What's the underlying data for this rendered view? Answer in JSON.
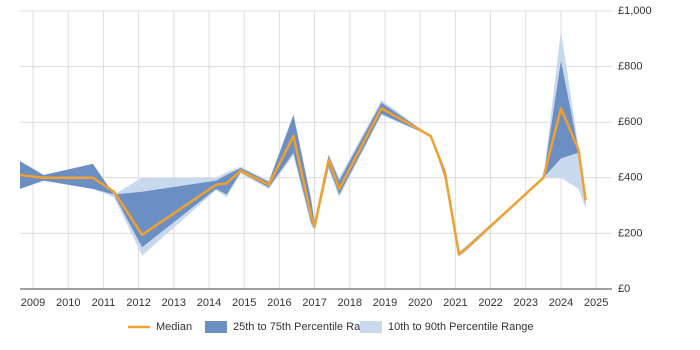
{
  "chart_data": {
    "type": "band-line",
    "x": [
      2008.63,
      2009.3,
      2010.7,
      2011.3,
      2012.1,
      2014.2,
      2014.5,
      2014.9,
      2015.7,
      2016.4,
      2016.9,
      2017.0,
      2017.4,
      2017.7,
      2018.9,
      2020.3,
      2020.7,
      2021.1,
      2021.3,
      2023.5,
      2024.0,
      2024.5,
      2024.7
    ],
    "series": [
      {
        "name": "Median",
        "color": "#f0a030",
        "values": [
          410,
          400,
          400,
          350,
          195,
          375,
          380,
          425,
          375,
          550,
          265,
          225,
          465,
          360,
          650,
          550,
          420,
          125,
          145,
          400,
          650,
          500,
          320
        ]
      },
      {
        "name": "25th to 75th Percentile Range",
        "color": "#6b8fc2",
        "low": [
          360,
          390,
          360,
          340,
          150,
          360,
          340,
          420,
          365,
          490,
          240,
          215,
          440,
          340,
          630,
          550,
          400,
          120,
          140,
          400,
          470,
          490,
          300
        ],
        "high": [
          460,
          410,
          450,
          340,
          350,
          390,
          410,
          435,
          385,
          625,
          320,
          240,
          480,
          390,
          670,
          550,
          430,
          130,
          150,
          400,
          820,
          500,
          335
        ]
      },
      {
        "name": "10th to 90th Percentile Range",
        "color": "#c8d9ee",
        "low": [
          360,
          390,
          360,
          330,
          120,
          355,
          330,
          415,
          360,
          480,
          230,
          210,
          430,
          330,
          625,
          550,
          395,
          115,
          135,
          400,
          400,
          360,
          290
        ],
        "high": [
          460,
          410,
          450,
          340,
          400,
          400,
          420,
          440,
          390,
          630,
          330,
          245,
          485,
          400,
          680,
          550,
          435,
          135,
          155,
          400,
          930,
          510,
          340
        ]
      }
    ],
    "xlim": [
      2008.63,
      2025.45
    ],
    "xticks": [
      2009,
      2010,
      2011,
      2012,
      2013,
      2014,
      2015,
      2016,
      2017,
      2018,
      2019,
      2020,
      2021,
      2022,
      2023,
      2024,
      2025
    ],
    "ylim": [
      0,
      1000
    ],
    "yticks": [
      {
        "value": 0,
        "label": "£0"
      },
      {
        "value": 200,
        "label": "£200"
      },
      {
        "value": 400,
        "label": "£400"
      },
      {
        "value": 600,
        "label": "£600"
      },
      {
        "value": 800,
        "label": "£800"
      },
      {
        "value": 1000,
        "label": "£1,000"
      }
    ],
    "grid": true
  }
}
